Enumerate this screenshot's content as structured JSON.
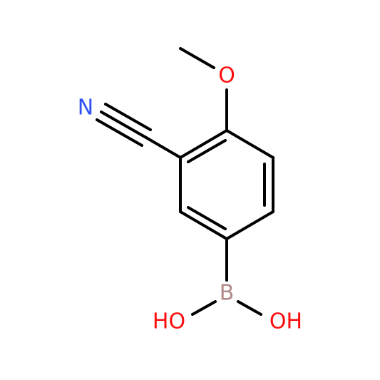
{
  "atoms": [
    {
      "label": "N"
    },
    {
      "label": "O"
    },
    {
      "label": "B"
    },
    {
      "label": "HO"
    },
    {
      "label": "OH"
    }
  ]
}
